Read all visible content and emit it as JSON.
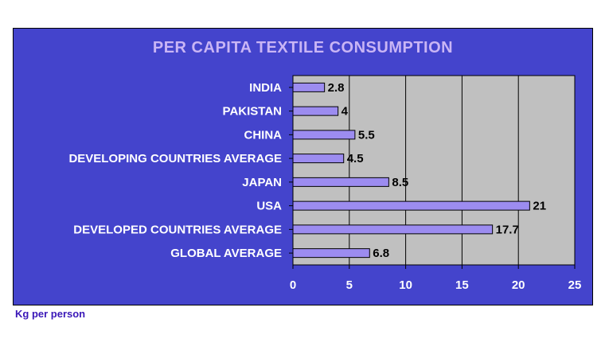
{
  "chart_data": {
    "type": "bar",
    "orientation": "horizontal",
    "title": "PER CAPITA TEXTILE CONSUMPTION",
    "categories": [
      "INDIA",
      "PAKISTAN",
      "CHINA",
      "DEVELOPING COUNTRIES AVERAGE",
      "JAPAN",
      "USA",
      "DEVELOPED COUNTRIES AVERAGE",
      "GLOBAL AVERAGE"
    ],
    "values": [
      2.8,
      4,
      5.5,
      4.5,
      8.5,
      21,
      17.7,
      6.8
    ],
    "value_labels": [
      "2.8",
      "4",
      "5.5",
      "4.5",
      "8.5",
      "21",
      "17.7",
      "6.8"
    ],
    "xlim": [
      0,
      25
    ],
    "xticks": [
      "0",
      "5",
      "10",
      "15",
      "20",
      "25"
    ],
    "grid": "vertical",
    "legend": "none",
    "colors": {
      "panel": "#4444cc",
      "plot_area": "#c0c0c0",
      "bar": "#9c8cf0",
      "title": "#c9b5f5",
      "label": "#ffffff"
    }
  },
  "footnote": "Kg per person"
}
